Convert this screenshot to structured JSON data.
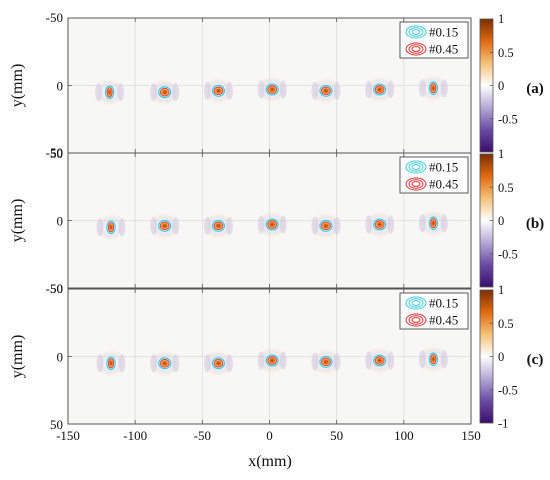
{
  "chart_data": {
    "type": "heatmap",
    "xlabel": "x(mm)",
    "ylabel": "y(mm)",
    "xlim": [
      -150,
      150
    ],
    "ylim": [
      -50,
      50
    ],
    "y_reversed": true,
    "x_ticks": [
      "-150",
      "-100",
      "-50",
      "0",
      "50",
      "100",
      "150"
    ],
    "y_ticks": [
      "-50",
      "0",
      "50"
    ],
    "grid": true,
    "colorbar": {
      "range": [
        -1,
        1
      ],
      "ticks": [
        "1",
        "0.5",
        "0",
        "-0.5",
        "-1"
      ],
      "colors": [
        "#7a2e00",
        "#e06a10",
        "#f3c27a",
        "#ffffff",
        "#b3a9d4",
        "#6a4aa6",
        "#3a0d6a"
      ]
    },
    "legend": {
      "placement": "top-right",
      "entries": [
        {
          "label": "#0.15",
          "color": "#3fc8dc"
        },
        {
          "label": "#0.45",
          "color": "#e03030"
        }
      ]
    },
    "panels": [
      {
        "label": "(a)",
        "spots": [
          {
            "x": -119,
            "y": 5,
            "peak": 0.55
          },
          {
            "x": -78,
            "y": 5,
            "peak": 0.8
          },
          {
            "x": -38,
            "y": 4,
            "peak": 0.85
          },
          {
            "x": 2,
            "y": 3,
            "peak": 0.85
          },
          {
            "x": 42,
            "y": 4,
            "peak": 0.8
          },
          {
            "x": 82,
            "y": 3,
            "peak": 0.75
          },
          {
            "x": 122,
            "y": 2,
            "peak": 0.55
          }
        ]
      },
      {
        "label": "(b)",
        "spots": [
          {
            "x": -118,
            "y": 5,
            "peak": 0.55
          },
          {
            "x": -78,
            "y": 4,
            "peak": 0.8
          },
          {
            "x": -38,
            "y": 4,
            "peak": 0.85
          },
          {
            "x": 2,
            "y": 3,
            "peak": 0.85
          },
          {
            "x": 42,
            "y": 4,
            "peak": 0.8
          },
          {
            "x": 82,
            "y": 3,
            "peak": 0.75
          },
          {
            "x": 122,
            "y": 2,
            "peak": 0.55
          }
        ]
      },
      {
        "label": "(c)",
        "spots": [
          {
            "x": -118,
            "y": 5,
            "peak": 0.55
          },
          {
            "x": -78,
            "y": 5,
            "peak": 0.8
          },
          {
            "x": -38,
            "y": 5,
            "peak": 0.85
          },
          {
            "x": 2,
            "y": 3,
            "peak": 0.85
          },
          {
            "x": 42,
            "y": 4,
            "peak": 0.8
          },
          {
            "x": 82,
            "y": 3,
            "peak": 0.75
          },
          {
            "x": 122,
            "y": 2,
            "peak": 0.55
          }
        ]
      }
    ]
  }
}
